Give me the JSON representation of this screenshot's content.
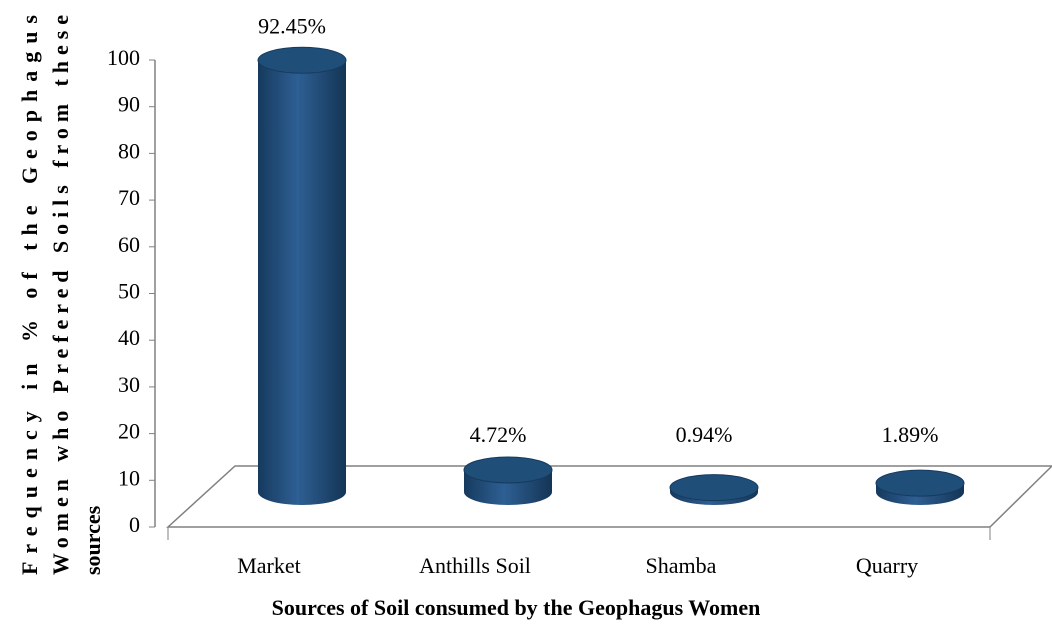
{
  "chart_data": {
    "type": "bar",
    "categories": [
      "Market",
      "Anthills Soil",
      "Shamba",
      "Quarry"
    ],
    "values": [
      92.45,
      4.72,
      0.94,
      1.89
    ],
    "value_labels": [
      "92.45%",
      "4.72%",
      "0.94%",
      "1.89%"
    ],
    "color": "#1f4e79",
    "ylim": [
      0,
      100
    ],
    "yticks": [
      0,
      10,
      20,
      30,
      40,
      50,
      60,
      70,
      80,
      90,
      100
    ],
    "x_label": "Sources of Soil consumed by the Geophagus Women",
    "y_label": [
      "Frequency in % of the Geophagus",
      "Women who Prefered Soils from these",
      "sources"
    ]
  }
}
